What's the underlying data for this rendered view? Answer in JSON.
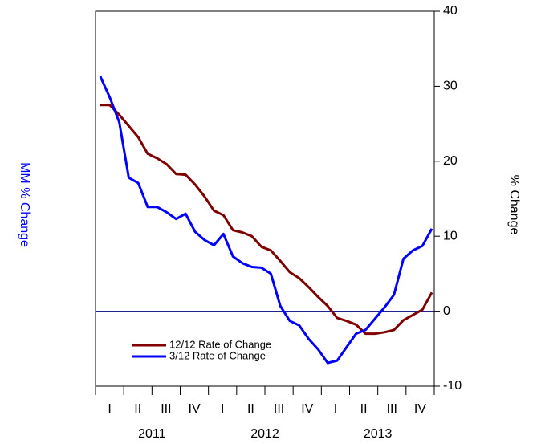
{
  "chart_data": {
    "type": "line",
    "y_label_left": "MM % Change",
    "y_label_right": "% Change",
    "quarters": [
      "I",
      "II",
      "III",
      "IV",
      "I",
      "II",
      "III",
      "IV",
      "I",
      "II",
      "III",
      "IV"
    ],
    "years": [
      "2011",
      "2012",
      "2013"
    ],
    "ylim": [
      -10,
      40
    ],
    "yticks": [
      -10,
      0,
      10,
      20,
      30,
      40
    ],
    "zero_line_color": "#000080",
    "series": [
      {
        "name": "12/12 Rate of Change",
        "color": "#800000",
        "values": [
          27.5,
          27.5,
          26.2,
          24.7,
          23.2,
          21.0,
          20.4,
          19.6,
          18.3,
          18.2,
          16.9,
          15.3,
          13.4,
          12.8,
          10.8,
          10.5,
          10.0,
          8.6,
          8.1,
          6.7,
          5.2,
          4.4,
          3.2,
          1.9,
          0.7,
          -0.9,
          -1.3,
          -1.8,
          -3.0,
          -3.0,
          -2.8,
          -2.5,
          -1.2,
          -0.5,
          0.2,
          2.5
        ]
      },
      {
        "name": "3/12 Rate of Change",
        "color": "#0000ff",
        "values": [
          31.3,
          28.5,
          25.2,
          17.8,
          17.1,
          13.9,
          13.9,
          13.2,
          12.3,
          13.0,
          10.6,
          9.5,
          8.8,
          10.3,
          7.3,
          6.4,
          5.9,
          5.8,
          5.0,
          0.7,
          -1.3,
          -1.9,
          -3.7,
          -5.1,
          -6.9,
          -6.6,
          -4.8,
          -3.0,
          -2.5,
          -1.0,
          0.5,
          2.2,
          7.0,
          8.1,
          8.7,
          11.0
        ]
      }
    ]
  }
}
